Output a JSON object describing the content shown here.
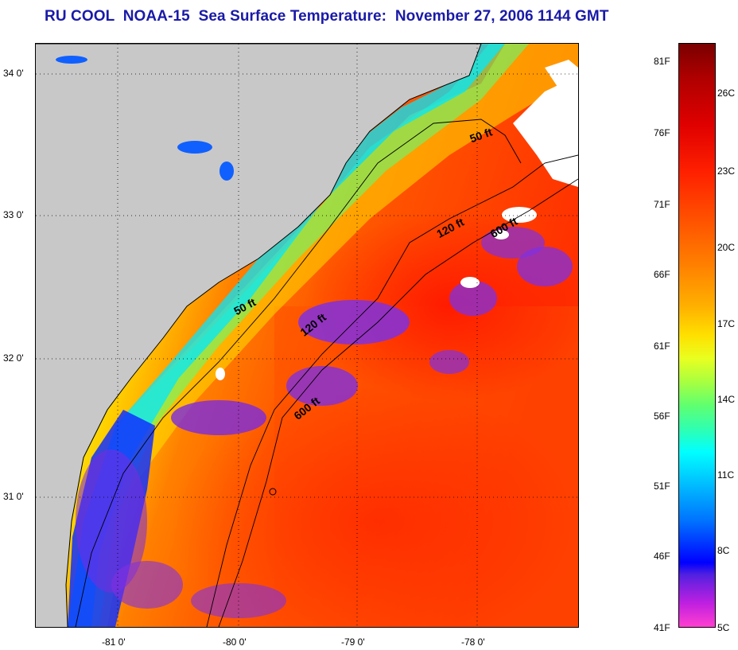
{
  "title": "RU COOL  NOAA-15  Sea Surface Temperature:  November 27, 2006 1144 GMT",
  "map": {
    "lat_labels": [
      "34 0'",
      "33 0'",
      "32 0'",
      "31 0'"
    ],
    "lon_labels": [
      "-81 0'",
      "-80 0'",
      "-79 0'",
      "-78 0'"
    ],
    "contours": [
      "50 ft",
      "50 ft",
      "120 ft",
      "120 ft",
      "600 ft",
      "600 ft"
    ]
  },
  "colorbar": {
    "fahrenheit": [
      "81F",
      "76F",
      "71F",
      "66F",
      "61F",
      "56F",
      "51F",
      "46F",
      "41F"
    ],
    "celsius": [
      "26C",
      "23C",
      "20C",
      "17C",
      "14C",
      "11C",
      "8C",
      "5C"
    ]
  },
  "colors": {
    "title": "#1a1aa8",
    "land": "#c8c8c8"
  }
}
